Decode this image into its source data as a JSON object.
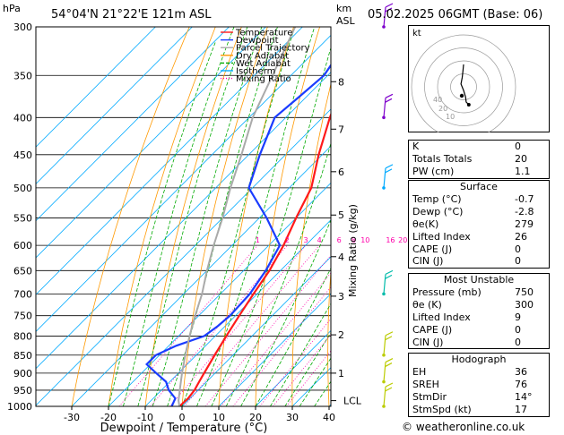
{
  "header": {
    "left_title": "54°04'N  21°22'E  121m  ASL",
    "right_title": "05.02.2025  06GMT  (Base: 06)",
    "p_unit": "hPa",
    "km_unit": "km",
    "asl_unit": "ASL"
  },
  "copyright": "© weatheronline.co.uk",
  "chart_data": {
    "type": "line",
    "xlabel": "Dewpoint / Temperature (°C)",
    "ylabel": "hPa",
    "right_label": "Mixing Ratio (g/kg)",
    "xlim": [
      -35,
      40
    ],
    "ylim": [
      1000,
      300
    ],
    "x_ticks": [
      "-30",
      "-20",
      "-10",
      "0",
      "10",
      "20",
      "30",
      "40"
    ],
    "pressure_levels": [
      "300",
      "350",
      "400",
      "450",
      "500",
      "550",
      "600",
      "650",
      "700",
      "750",
      "800",
      "850",
      "900",
      "950",
      "1000"
    ],
    "km_ticks": [
      {
        "label": "8",
        "p": 357
      },
      {
        "label": "7",
        "p": 415
      },
      {
        "label": "6",
        "p": 475
      },
      {
        "label": "5",
        "p": 545
      },
      {
        "label": "4",
        "p": 622
      },
      {
        "label": "3",
        "p": 705
      },
      {
        "label": "2",
        "p": 797
      },
      {
        "label": "1",
        "p": 900
      },
      {
        "label": "LCL",
        "p": 982
      }
    ],
    "mixing_ratio_labels": [
      "1",
      "2",
      "3",
      "4",
      "6",
      "8",
      "10",
      "16",
      "20",
      "25"
    ],
    "legend": [
      "Temperature",
      "Dewpoint",
      "Parcel Trajectory",
      "Dry Adiabat",
      "Wet Adiabat",
      "Isotherm",
      "Mixing Ratio"
    ],
    "colors": {
      "temperature": "#ff1a1a",
      "dewpoint": "#1a3cff",
      "parcel": "#aaaaaa",
      "dry_adiabat": "#ff9900",
      "wet_adiabat": "#00aa00",
      "isotherm": "#00aaff",
      "mixing_ratio": "#ff00aa"
    },
    "series": [
      {
        "name": "Temperature",
        "points": [
          [
            1000,
            -0.7
          ],
          [
            975,
            -0.5
          ],
          [
            950,
            -1
          ],
          [
            925,
            -2
          ],
          [
            900,
            -3
          ],
          [
            850,
            -5
          ],
          [
            800,
            -7
          ],
          [
            750,
            -9
          ],
          [
            700,
            -11
          ],
          [
            650,
            -13
          ],
          [
            600,
            -16
          ],
          [
            550,
            -20
          ],
          [
            500,
            -24
          ],
          [
            450,
            -31
          ],
          [
            400,
            -38
          ],
          [
            350,
            -45
          ],
          [
            300,
            -52
          ]
        ]
      },
      {
        "name": "Dewpoint",
        "points": [
          [
            1000,
            -2.8
          ],
          [
            975,
            -4
          ],
          [
            950,
            -8
          ],
          [
            925,
            -11
          ],
          [
            900,
            -16
          ],
          [
            875,
            -21
          ],
          [
            850,
            -21
          ],
          [
            825,
            -18
          ],
          [
            800,
            -13
          ],
          [
            775,
            -12
          ],
          [
            750,
            -11.5
          ],
          [
            700,
            -12
          ],
          [
            650,
            -14
          ],
          [
            600,
            -17
          ],
          [
            550,
            -28
          ],
          [
            500,
            -41
          ],
          [
            450,
            -47
          ],
          [
            400,
            -53
          ],
          [
            375,
            -52
          ],
          [
            350,
            -51
          ],
          [
            325,
            -53
          ],
          [
            300,
            -55
          ]
        ]
      },
      {
        "name": "Parcel Trajectory",
        "points": [
          [
            1000,
            -0.7
          ],
          [
            982,
            -2.5
          ],
          [
            950,
            -5
          ],
          [
            900,
            -9
          ],
          [
            850,
            -13
          ],
          [
            800,
            -17
          ],
          [
            750,
            -21
          ],
          [
            700,
            -25
          ],
          [
            650,
            -30
          ],
          [
            600,
            -35
          ],
          [
            550,
            -40
          ],
          [
            500,
            -46
          ],
          [
            450,
            -52
          ],
          [
            400,
            -59
          ],
          [
            350,
            -65
          ],
          [
            300,
            -72
          ]
        ]
      }
    ]
  },
  "wind_colors": {
    "upper": "#7e00cc",
    "mid": "#00aaff",
    "low": "#00bbaa",
    "surface": "#bbcc00"
  },
  "hodograph": {
    "label": "kt",
    "ring_labels": [
      "10",
      "20",
      "40"
    ],
    "trace": [
      [
        0,
        0
      ],
      [
        -0.5,
        -5
      ],
      [
        -1,
        -10
      ],
      [
        -2,
        -15
      ],
      [
        0,
        -20
      ],
      [
        1.5,
        -25
      ],
      [
        2,
        -29
      ],
      [
        4,
        -31
      ]
    ]
  },
  "indices": {
    "top": [
      {
        "label": "K",
        "value": "0"
      },
      {
        "label": "Totals Totals",
        "value": "20"
      },
      {
        "label": "PW (cm)",
        "value": "1.1"
      }
    ],
    "surface_title": "Surface",
    "surface": [
      {
        "label": "Temp (°C)",
        "value": "-0.7"
      },
      {
        "label": "Dewp (°C)",
        "value": "-2.8"
      },
      {
        "label": "θe(K)",
        "value": "279"
      },
      {
        "label": "Lifted Index",
        "value": "26"
      },
      {
        "label": "CAPE (J)",
        "value": "0"
      },
      {
        "label": "CIN (J)",
        "value": "0"
      }
    ],
    "mu_title": "Most Unstable",
    "mu": [
      {
        "label": "Pressure (mb)",
        "value": "750"
      },
      {
        "label": "θe (K)",
        "value": "300"
      },
      {
        "label": "Lifted Index",
        "value": "9"
      },
      {
        "label": "CAPE (J)",
        "value": "0"
      },
      {
        "label": "CIN (J)",
        "value": "0"
      }
    ],
    "hodo_title": "Hodograph",
    "hodo": [
      {
        "label": "EH",
        "value": "36"
      },
      {
        "label": "SREH",
        "value": "76"
      },
      {
        "label": "StmDir",
        "value": "14°"
      },
      {
        "label": "StmSpd (kt)",
        "value": "17"
      }
    ]
  }
}
